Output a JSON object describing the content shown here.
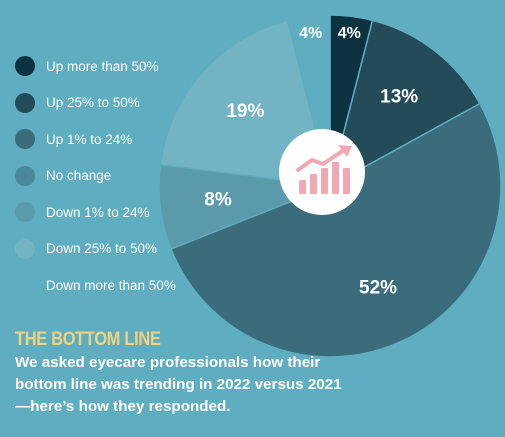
{
  "chart_data": {
    "type": "pie",
    "title": "",
    "categories": [
      "Up more than 50%",
      "Up 25% to 50%",
      "Up 1% to 24%",
      "No change",
      "Down 1% to 24%",
      "Down 25% to 50%",
      "Down more than 50%"
    ],
    "series": [
      {
        "values": [
          4,
          13,
          52,
          0,
          8,
          19,
          4
        ]
      }
    ],
    "slice_labels": [
      "4%",
      "13%",
      "52%",
      "",
      "8%",
      "19%",
      "4%"
    ],
    "colors": [
      "#0e3340",
      "#244b58",
      "#3a6c7b",
      "#4a8899",
      "#5a9aab",
      "#72b3c4",
      "#5fadc0"
    ],
    "center_icon": "trending-up-chart-icon",
    "legend_position": "left"
  },
  "footer": {
    "title": "THE BOTTOM LINE",
    "lines": [
      "We asked eyecare professionals how their",
      "bottom line was trending in 2022 versus 2021",
      "—here’s how they responded."
    ]
  }
}
